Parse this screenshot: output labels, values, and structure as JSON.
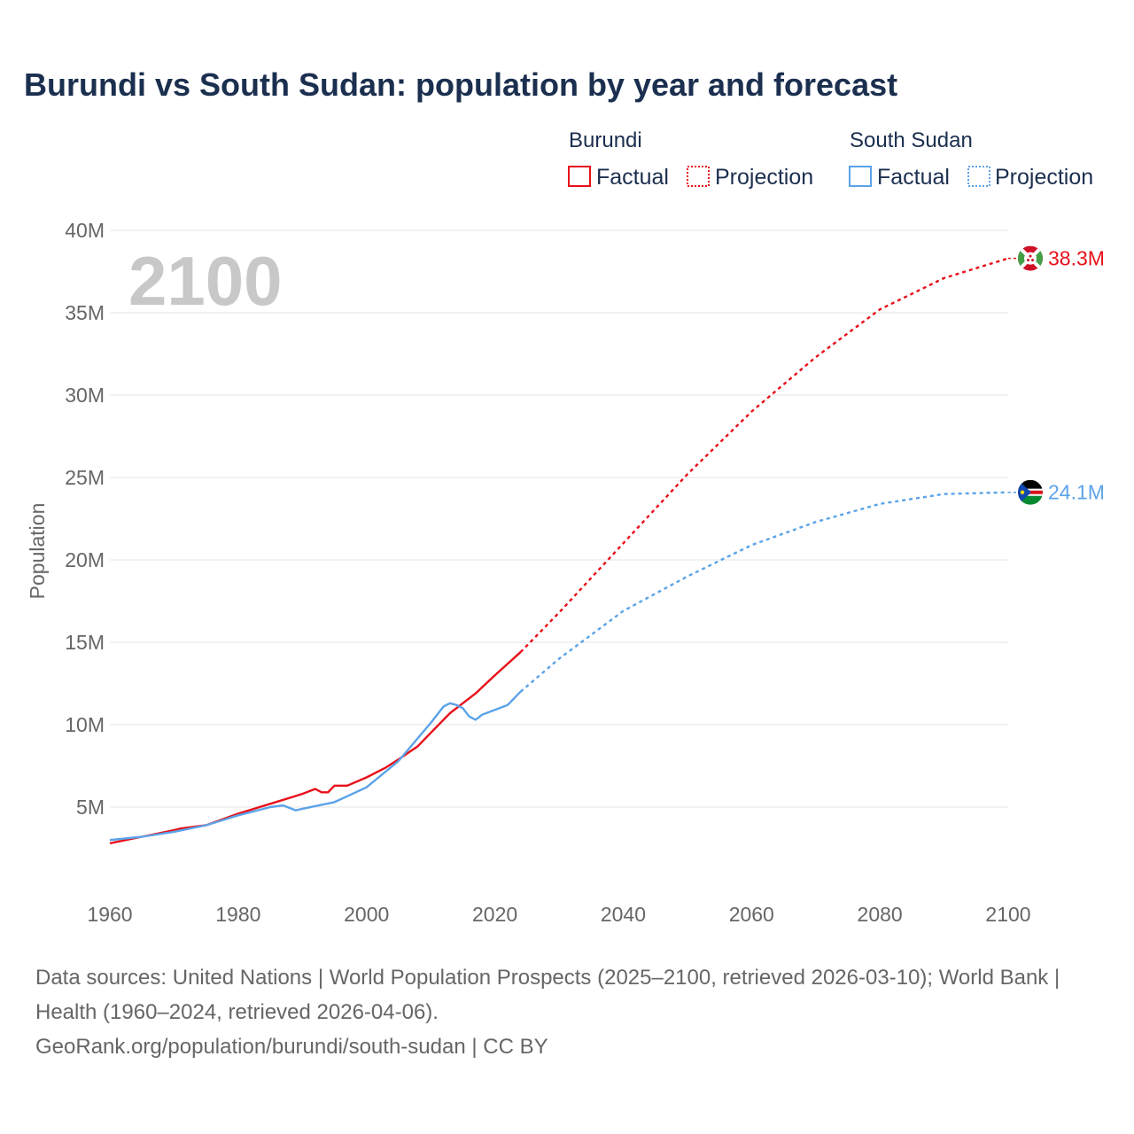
{
  "page": {
    "title": "Burundi vs South Sudan: population by year and forecast",
    "current_year": "2100",
    "footer_sources": "Data sources: United Nations | World Population Prospects (2025–2100, retrieved 2026-03-10); World Bank | Health (1960–2024, retrieved 2026-04-06).",
    "footer_credit": "GeoRank.org/population/burundi/south-sudan | CC BY"
  },
  "legend": {
    "groups": [
      {
        "name": "Burundi",
        "factual_label": "Factual",
        "projection_label": "Projection",
        "color": "#e8101a"
      },
      {
        "name": "South Sudan",
        "factual_label": "Factual",
        "projection_label": "Projection",
        "color": "#5ba3e8"
      }
    ]
  },
  "chart_data": {
    "type": "line",
    "title": "Burundi vs South Sudan: population by year and forecast",
    "xlabel": "",
    "ylabel": "Population",
    "xlim": [
      1960,
      2100
    ],
    "ylim": [
      0,
      40000000
    ],
    "x_ticks": [
      1960,
      1980,
      2000,
      2020,
      2040,
      2060,
      2080,
      2100
    ],
    "x_tick_labels": [
      "1960",
      "1980",
      "2000",
      "2020",
      "2040",
      "2060",
      "2080",
      "2100"
    ],
    "y_ticks": [
      5000000,
      10000000,
      15000000,
      20000000,
      25000000,
      30000000,
      35000000,
      40000000
    ],
    "y_tick_labels": [
      "5M",
      "10M",
      "15M",
      "20M",
      "25M",
      "30M",
      "35M",
      "40M"
    ],
    "grid": true,
    "legend_position": "top-right",
    "series": [
      {
        "name": "Burundi",
        "color": "#e8101a",
        "end_label": "38.3M",
        "factual": {
          "x": [
            1960,
            1965,
            1970,
            1971,
            1975,
            1980,
            1985,
            1990,
            1992,
            1993,
            1994,
            1995,
            1997,
            2000,
            2003,
            2005,
            2008,
            2010,
            2013,
            2015,
            2017,
            2020,
            2024
          ],
          "y": [
            2800000,
            3200000,
            3600000,
            3700000,
            3900000,
            4600000,
            5200000,
            5800000,
            6100000,
            5900000,
            5900000,
            6300000,
            6300000,
            6800000,
            7400000,
            7900000,
            8700000,
            9500000,
            10700000,
            11300000,
            11900000,
            13000000,
            14400000
          ]
        },
        "projection": {
          "x": [
            2024,
            2030,
            2040,
            2050,
            2060,
            2070,
            2080,
            2090,
            2100
          ],
          "y": [
            14400000,
            16800000,
            21000000,
            25200000,
            29000000,
            32300000,
            35200000,
            37100000,
            38300000
          ]
        }
      },
      {
        "name": "South Sudan",
        "color": "#5ba3e8",
        "end_label": "24.1M",
        "factual": {
          "x": [
            1960,
            1965,
            1970,
            1975,
            1980,
            1985,
            1987,
            1989,
            1990,
            1995,
            2000,
            2005,
            2010,
            2012,
            2013,
            2014,
            2015,
            2016,
            2017,
            2018,
            2020,
            2022,
            2024
          ],
          "y": [
            3000000,
            3200000,
            3500000,
            3900000,
            4500000,
            5000000,
            5100000,
            4800000,
            4900000,
            5300000,
            6200000,
            7800000,
            10100000,
            11100000,
            11300000,
            11200000,
            11000000,
            10500000,
            10300000,
            10600000,
            10900000,
            11200000,
            12000000
          ]
        },
        "projection": {
          "x": [
            2024,
            2030,
            2040,
            2050,
            2060,
            2070,
            2080,
            2090,
            2100
          ],
          "y": [
            12000000,
            14000000,
            16900000,
            19000000,
            20900000,
            22300000,
            23400000,
            24000000,
            24100000
          ]
        }
      }
    ]
  }
}
